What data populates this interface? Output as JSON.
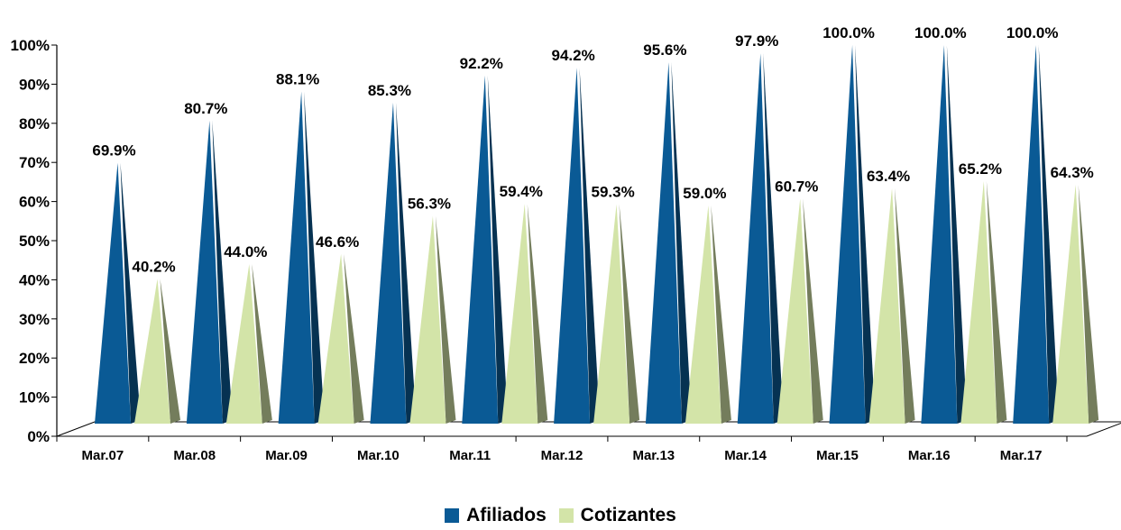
{
  "colors": {
    "afiliados": "#0A5A95",
    "cotizantes": "#D3E4A8"
  },
  "chart_data": {
    "type": "bar",
    "style": "3d-pyramid",
    "categories": [
      "Mar.07",
      "Mar.08",
      "Mar.09",
      "Mar.10",
      "Mar.11",
      "Mar.12",
      "Mar.13",
      "Mar.14",
      "Mar.15",
      "Mar.16",
      "Mar.17"
    ],
    "series": [
      {
        "name": "Afiliados",
        "values": [
          69.9,
          80.7,
          88.1,
          85.3,
          92.2,
          94.2,
          95.6,
          97.9,
          100.0,
          100.0,
          100.0
        ],
        "labels": [
          "69.9%",
          "80.7%",
          "88.1%",
          "85.3%",
          "92.2%",
          "94.2%",
          "95.6%",
          "97.9%",
          "100.0%",
          "100.0%",
          "100.0%"
        ]
      },
      {
        "name": "Cotizantes",
        "values": [
          40.2,
          44.0,
          46.6,
          56.3,
          59.4,
          59.3,
          59.0,
          60.7,
          63.4,
          65.2,
          64.3
        ],
        "labels": [
          "40.2%",
          "44.0%",
          "46.6%",
          "56.3%",
          "59.4%",
          "59.3%",
          "59.0%",
          "60.7%",
          "63.4%",
          "65.2%",
          "64.3%"
        ]
      }
    ],
    "yticks": [
      "0%",
      "10%",
      "20%",
      "30%",
      "40%",
      "50%",
      "60%",
      "70%",
      "80%",
      "90%",
      "100%"
    ],
    "ylim": [
      0,
      100
    ],
    "legend_position": "bottom",
    "title": "",
    "xlabel": "",
    "ylabel": ""
  }
}
